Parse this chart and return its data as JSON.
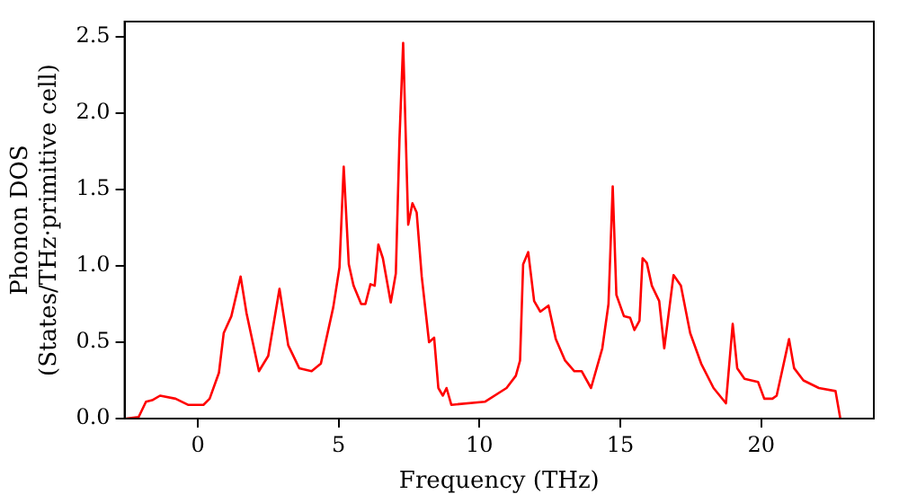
{
  "chart_data": {
    "type": "line",
    "xlabel": "Frequency (THz)",
    "ylabel": "Phonon DOS\n(States/THz·primitive cell)",
    "xlim": [
      -2.6,
      24
    ],
    "xticks": [
      0,
      5,
      10,
      15,
      20
    ],
    "ylim": [
      0,
      2.6
    ],
    "yticks": [
      {
        "value": 0,
        "label": "0.0"
      },
      0.5,
      {
        "value": 1,
        "label": "1.0"
      },
      1.5,
      {
        "value": 2,
        "label": "2.0"
      },
      2.5
    ],
    "grid": false,
    "legend": false,
    "marker": "none",
    "line_style": "solid",
    "series": [
      {
        "color": "#ff0000",
        "x": [
          -2.55,
          -2.1,
          -1.84,
          -1.62,
          -1.34,
          -0.79,
          -0.35,
          0.2,
          0.42,
          0.75,
          0.92,
          1.19,
          1.52,
          1.73,
          2.17,
          2.5,
          2.9,
          3.21,
          3.6,
          4.04,
          4.37,
          4.81,
          5.03,
          5.18,
          5.36,
          5.53,
          5.8,
          5.95,
          6.13,
          6.28,
          6.41,
          6.57,
          6.85,
          7.03,
          7.16,
          7.29,
          7.47,
          7.62,
          7.77,
          7.95,
          8.21,
          8.39,
          8.54,
          8.7,
          8.83,
          9.0,
          10.19,
          10.96,
          11.29,
          11.44,
          11.55,
          11.73,
          11.94,
          12.16,
          12.45,
          12.71,
          13.04,
          13.37,
          13.63,
          13.96,
          14.36,
          14.58,
          14.73,
          14.86,
          15.13,
          15.35,
          15.5,
          15.68,
          15.79,
          15.94,
          16.12,
          16.38,
          16.56,
          16.89,
          17.15,
          17.48,
          17.87,
          18.31,
          18.75,
          18.99,
          19.15,
          19.41,
          19.89,
          20.11,
          20.4,
          20.55,
          20.73,
          20.99,
          21.17,
          21.5,
          22.05,
          22.64,
          22.81
        ],
        "values": [
          0,
          0.01,
          0.11,
          0.12,
          0.15,
          0.13,
          0.09,
          0.09,
          0.13,
          0.3,
          0.56,
          0.67,
          0.93,
          0.69,
          0.31,
          0.41,
          0.85,
          0.48,
          0.33,
          0.31,
          0.36,
          0.73,
          0.99,
          1.65,
          1.01,
          0.87,
          0.75,
          0.75,
          0.88,
          0.87,
          1.14,
          1.05,
          0.76,
          0.95,
          1.83,
          2.46,
          1.27,
          1.41,
          1.35,
          0.93,
          0.5,
          0.53,
          0.2,
          0.15,
          0.2,
          0.09,
          0.11,
          0.2,
          0.28,
          0.38,
          1.01,
          1.09,
          0.77,
          0.7,
          0.74,
          0.52,
          0.38,
          0.31,
          0.31,
          0.2,
          0.46,
          0.75,
          1.52,
          0.81,
          0.67,
          0.66,
          0.58,
          0.64,
          1.05,
          1.02,
          0.87,
          0.77,
          0.46,
          0.94,
          0.87,
          0.56,
          0.36,
          0.2,
          0.1,
          0.62,
          0.33,
          0.26,
          0.24,
          0.13,
          0.13,
          0.15,
          0.3,
          0.52,
          0.33,
          0.25,
          0.2,
          0.18,
          0
        ]
      }
    ]
  }
}
